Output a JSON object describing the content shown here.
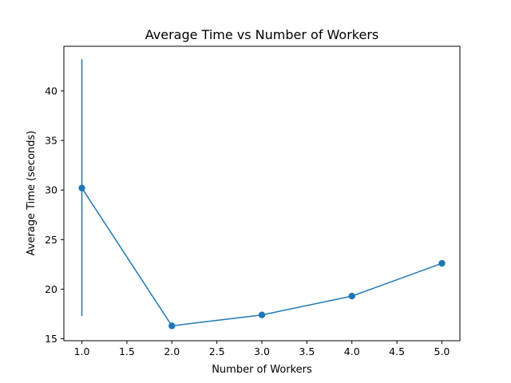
{
  "chart_data": {
    "type": "line",
    "title": "Average Time vs Number of Workers",
    "xlabel": "Number of Workers",
    "ylabel": "Average Time (seconds)",
    "xlim": [
      0.8,
      5.2
    ],
    "ylim": [
      14.8,
      44.5
    ],
    "xticks": [
      1.0,
      1.5,
      2.0,
      2.5,
      3.0,
      3.5,
      4.0,
      4.5,
      5.0
    ],
    "xtick_labels": [
      "1.0",
      "1.5",
      "2.0",
      "2.5",
      "3.0",
      "3.5",
      "4.0",
      "4.5",
      "5.0"
    ],
    "yticks": [
      15,
      20,
      25,
      30,
      35,
      40
    ],
    "ytick_labels": [
      "15",
      "20",
      "25",
      "30",
      "35",
      "40"
    ],
    "grid": false,
    "series": [
      {
        "color": "#1f77b4",
        "marker": "circle",
        "x": [
          1,
          2,
          3,
          4,
          5
        ],
        "y": [
          30.2,
          16.3,
          17.4,
          19.3,
          22.6
        ],
        "yerr_low": [
          17.3,
          16.3,
          17.4,
          19.3,
          22.4
        ],
        "yerr_high": [
          43.2,
          16.3,
          17.4,
          19.3,
          22.8
        ]
      }
    ]
  }
}
